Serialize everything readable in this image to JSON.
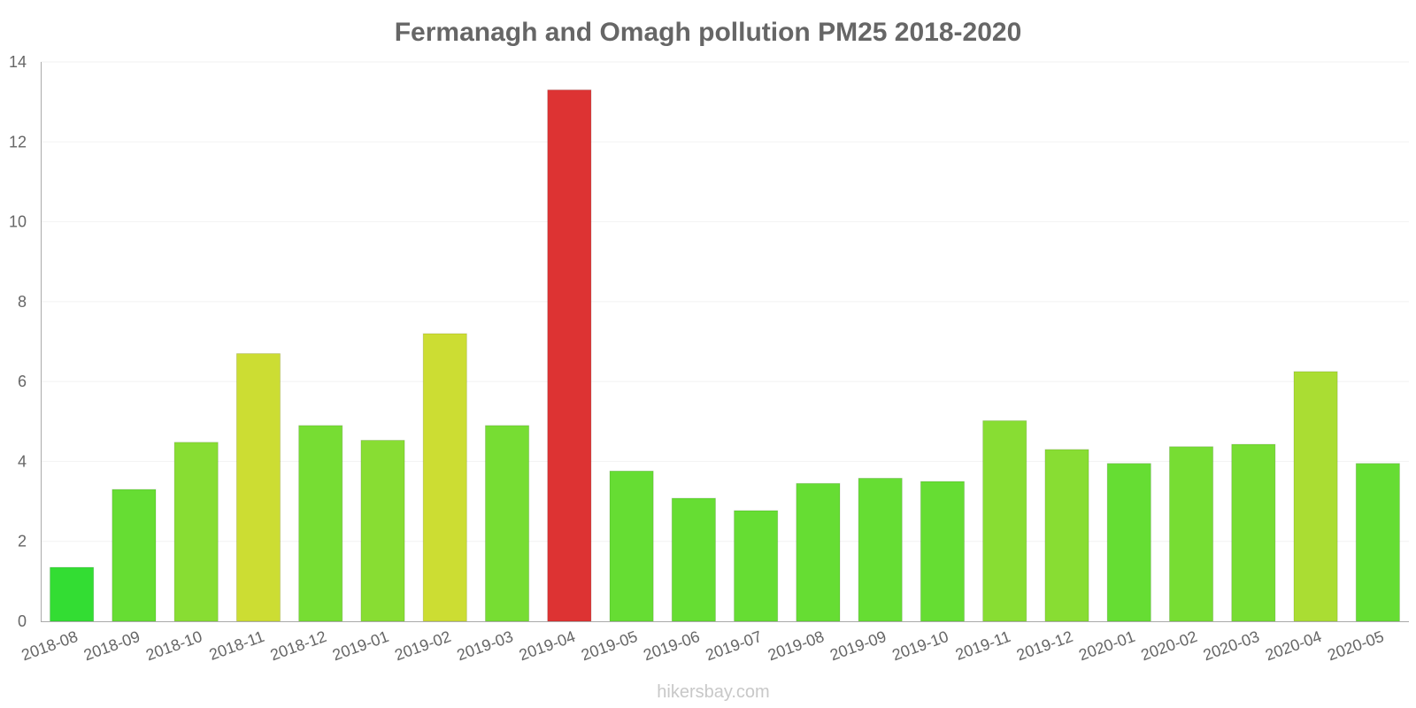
{
  "chart_data": {
    "type": "bar",
    "title": "Fermanagh and Omagh pollution PM25 2018-2020",
    "xlabel": "",
    "ylabel": "",
    "ylim": [
      0,
      14
    ],
    "yticks": [
      "0",
      "2",
      "4",
      "6",
      "8",
      "10",
      "12",
      "14"
    ],
    "grid": true,
    "categories": [
      "2018-08",
      "2018-09",
      "2018-10",
      "2018-11",
      "2018-12",
      "2019-01",
      "2019-02",
      "2019-03",
      "2019-04",
      "2019-05",
      "2019-06",
      "2019-07",
      "2019-08",
      "2019-09",
      "2019-10",
      "2019-11",
      "2019-12",
      "2020-01",
      "2020-02",
      "2020-03",
      "2020-04",
      "2020-05"
    ],
    "values": [
      1.35,
      3.3,
      4.48,
      6.7,
      4.9,
      4.53,
      7.2,
      4.9,
      13.3,
      3.76,
      3.08,
      2.77,
      3.45,
      3.58,
      3.5,
      5.02,
      4.3,
      3.95,
      4.37,
      4.43,
      6.25,
      3.95
    ],
    "colors": [
      "#33dd33",
      "#66dd33",
      "#88dd33",
      "#ccdd33",
      "#77dd33",
      "#88dd33",
      "#ccdd33",
      "#77dd33",
      "#dd3333",
      "#66dd33",
      "#66dd33",
      "#66dd33",
      "#66dd33",
      "#66dd33",
      "#66dd33",
      "#88dd33",
      "#88dd33",
      "#66dd33",
      "#77dd33",
      "#77dd33",
      "#aadd33",
      "#66dd33"
    ]
  },
  "watermark": "hikersbay.com"
}
